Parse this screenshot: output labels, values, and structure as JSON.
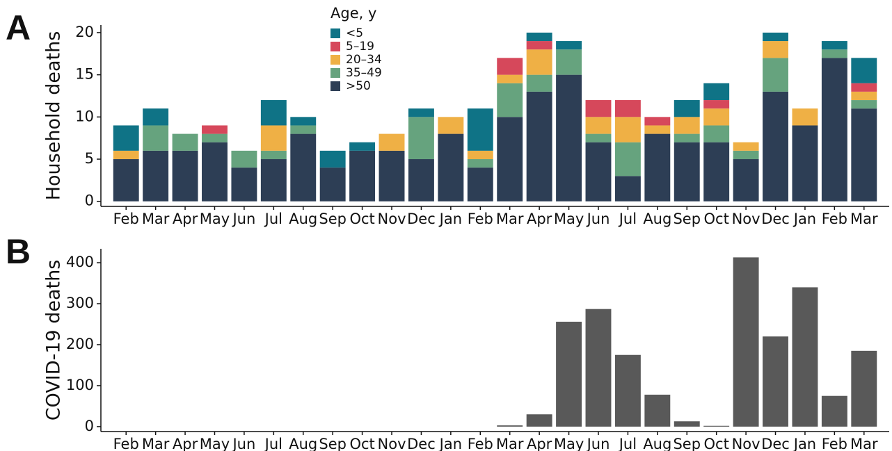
{
  "chart_data": [
    {
      "type": "stacked_bar",
      "panel_label": "A",
      "y_label": "Household deaths",
      "categories": [
        "Feb",
        "Mar",
        "Apr",
        "May",
        "Jun",
        "Jul",
        "Aug",
        "Sep",
        "Oct",
        "Nov",
        "Dec",
        "Jan",
        "Feb",
        "Mar",
        "Apr",
        "May",
        "Jun",
        "Jul",
        "Aug",
        "Sep",
        "Oct",
        "Nov",
        "Dec",
        "Jan",
        "Feb",
        "Mar"
      ],
      "legend_title": "Age, y",
      "series": [
        {
          "name": "<5",
          "color": "#0f7386",
          "values": [
            3,
            2,
            0,
            0,
            0,
            3,
            1,
            2,
            1,
            0,
            1,
            0,
            5,
            0,
            1,
            1,
            0,
            0,
            0,
            2,
            2,
            0,
            1,
            0,
            1,
            3
          ]
        },
        {
          "name": "5–19",
          "color": "#d6485b",
          "values": [
            0,
            0,
            0,
            1,
            0,
            0,
            0,
            0,
            0,
            0,
            0,
            0,
            0,
            2,
            1,
            0,
            2,
            2,
            1,
            0,
            1,
            0,
            0,
            0,
            0,
            1
          ]
        },
        {
          "name": "20–34",
          "color": "#efb045",
          "values": [
            1,
            0,
            0,
            0,
            0,
            3,
            0,
            0,
            0,
            2,
            0,
            2,
            1,
            1,
            3,
            0,
            2,
            3,
            1,
            2,
            2,
            1,
            2,
            2,
            0,
            1
          ]
        },
        {
          "name": "35–49",
          "color": "#66a37e",
          "values": [
            0,
            3,
            2,
            1,
            2,
            1,
            1,
            0,
            0,
            0,
            5,
            0,
            1,
            4,
            2,
            3,
            1,
            4,
            0,
            1,
            2,
            1,
            4,
            0,
            1,
            1
          ]
        },
        {
          "name": ">50",
          "color": "#2d3e55",
          "values": [
            5,
            6,
            6,
            7,
            4,
            5,
            8,
            4,
            6,
            6,
            5,
            8,
            4,
            10,
            13,
            15,
            7,
            3,
            8,
            7,
            7,
            5,
            13,
            9,
            17,
            11
          ]
        }
      ],
      "ylim": [
        -0.6,
        20.9
      ],
      "yticks": [
        0,
        5,
        10,
        15,
        20
      ]
    },
    {
      "type": "bar",
      "panel_label": "B",
      "y_label": "COVID-19 deaths",
      "categories": [
        "Feb",
        "Mar",
        "Apr",
        "May",
        "Jun",
        "Jul",
        "Aug",
        "Sep",
        "Oct",
        "Nov",
        "Dec",
        "Jan",
        "Feb",
        "Mar",
        "Apr",
        "May",
        "Jun",
        "Jul",
        "Aug",
        "Sep",
        "Oct",
        "Nov",
        "Dec",
        "Jan",
        "Feb",
        "Mar"
      ],
      "color": "#595959",
      "values": [
        0,
        0,
        0,
        0,
        0,
        0,
        0,
        0,
        0,
        0,
        0,
        0,
        0,
        3,
        30,
        256,
        287,
        175,
        78,
        13,
        2,
        413,
        220,
        340,
        75,
        185
      ],
      "ylim": [
        -12,
        434
      ],
      "yticks": [
        0,
        100,
        200,
        300,
        400
      ]
    }
  ]
}
